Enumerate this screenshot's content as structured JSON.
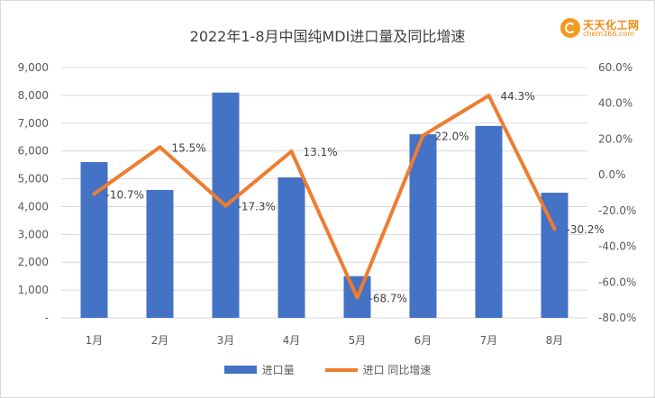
{
  "title": "2022年1-8月中国纯MDI进口量及同比增速",
  "logo": {
    "name": "天天化工网",
    "url": "chem366.com"
  },
  "colors": {
    "bars": "#4472c4",
    "line": "#ed7d31",
    "grid": "#d9d9d9",
    "text": "#595959"
  },
  "chart_data": {
    "type": "bar+line",
    "title": "2022年1-8月中国纯MDI进口量及同比增速",
    "categories": [
      "1月",
      "2月",
      "3月",
      "4月",
      "5月",
      "6月",
      "7月",
      "8月"
    ],
    "series": [
      {
        "name": "进口量",
        "type": "bar",
        "axis": "left",
        "values": [
          5600,
          4600,
          8100,
          5050,
          1500,
          6600,
          6900,
          4500
        ]
      },
      {
        "name": "进口 同比增速",
        "type": "line",
        "axis": "right",
        "values": [
          -10.7,
          15.5,
          -17.3,
          13.1,
          -68.7,
          22.0,
          44.3,
          -30.2
        ],
        "labels": [
          "-10.7%",
          "15.5%",
          "-17.3%",
          "13.1%",
          "-68.7%",
          "22.0%",
          "44.3%",
          "-30.2%"
        ]
      }
    ],
    "left_axis": {
      "ylim": [
        0,
        9000
      ],
      "ticks": [
        0,
        1000,
        2000,
        3000,
        4000,
        5000,
        6000,
        7000,
        8000,
        9000
      ],
      "tick_labels": [
        "-",
        "1,000",
        "2,000",
        "3,000",
        "4,000",
        "5,000",
        "6,000",
        "7,000",
        "8,000",
        "9,000"
      ]
    },
    "right_axis": {
      "ylim": [
        -80,
        60
      ],
      "ticks": [
        -80,
        -60,
        -40,
        -20,
        0,
        20,
        40,
        60
      ],
      "tick_labels": [
        "-80.0%",
        "-60.0%",
        "-40.0%",
        "-20.0%",
        "0.0%",
        "20.0%",
        "40.0%",
        "60.0%"
      ]
    },
    "grid": true,
    "legend": "bottom-center"
  }
}
